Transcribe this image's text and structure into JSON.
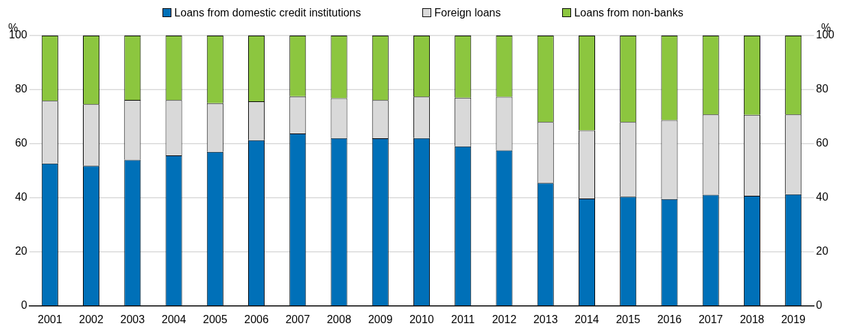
{
  "chart_data": {
    "type": "bar",
    "stacked": true,
    "ylabel": "%",
    "y2label": "%",
    "categories": [
      "2001",
      "2002",
      "2003",
      "2004",
      "2005",
      "2006",
      "2007",
      "2008",
      "2009",
      "2010",
      "2011",
      "2012",
      "2013",
      "2014",
      "2015",
      "2016",
      "2017",
      "2018",
      "2019"
    ],
    "series": [
      {
        "name": "Loans from domestic credit institutions",
        "color": "#0070b8",
        "values": [
          52.7,
          51.8,
          54.0,
          55.7,
          57.0,
          61.3,
          63.8,
          62.1,
          62.0,
          62.1,
          59.0,
          57.6,
          45.5,
          39.7,
          40.4,
          39.5,
          41.1,
          40.7,
          41.3
        ]
      },
      {
        "name": "Foreign loans",
        "color": "#d9d9d9",
        "values": [
          23.2,
          22.8,
          22.2,
          20.4,
          18.0,
          14.4,
          13.7,
          14.7,
          14.1,
          15.3,
          18.0,
          19.7,
          22.5,
          25.2,
          27.6,
          29.2,
          29.7,
          30.0,
          29.5
        ]
      },
      {
        "name": "Loans from non-banks",
        "color": "#8cc63f",
        "values": [
          24.1,
          25.4,
          23.8,
          23.9,
          25.0,
          24.3,
          22.5,
          23.2,
          23.9,
          22.6,
          23.0,
          22.7,
          32.0,
          35.1,
          32.0,
          31.3,
          29.2,
          29.3,
          29.2
        ]
      }
    ],
    "ylim": [
      0,
      100
    ],
    "yticks": [
      0,
      20,
      40,
      60,
      80,
      100
    ],
    "y2lim": [
      0,
      100
    ],
    "y2ticks": [
      0,
      20,
      40,
      60,
      80,
      100
    ],
    "grid": "y",
    "legend": "top"
  }
}
